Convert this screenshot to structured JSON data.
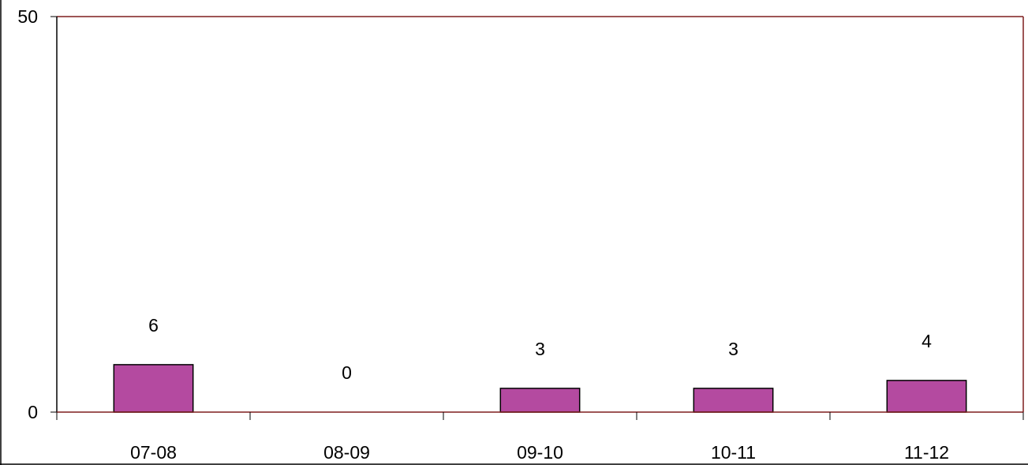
{
  "chart_data": {
    "type": "bar",
    "categories": [
      "07-08",
      "08-09",
      "09-10",
      "10-11",
      "11-12"
    ],
    "values": [
      6,
      0,
      3,
      3,
      4
    ],
    "data_labels": [
      "6",
      "0",
      "3",
      "3",
      "4"
    ],
    "title": "",
    "xlabel": "",
    "ylabel": "",
    "ylim": [
      0,
      50
    ],
    "yticks": [
      "0",
      "50"
    ],
    "grid": false,
    "legend": "none",
    "colors": {
      "bar_fill": "#b44aa0",
      "bar_stroke": "#000000",
      "plot_border": "#7f1f1f",
      "axis": "#000000"
    }
  }
}
